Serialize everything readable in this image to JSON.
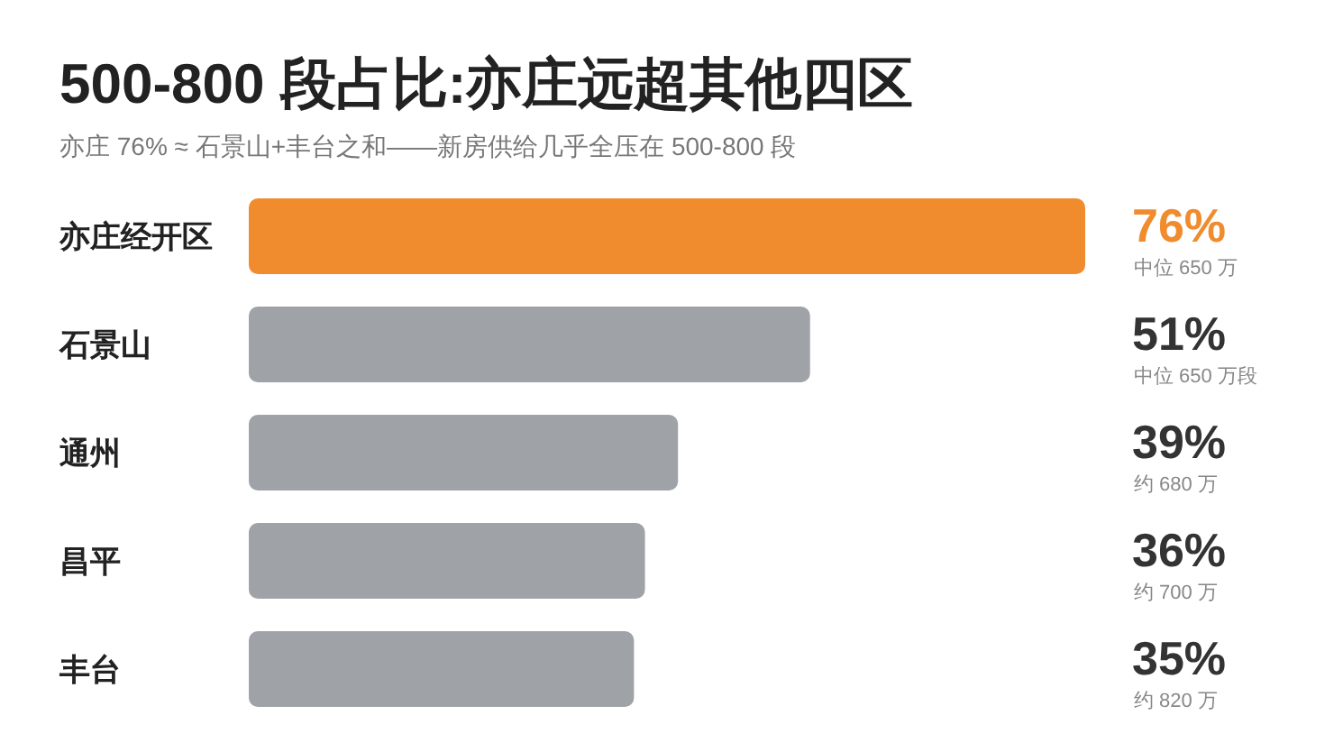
{
  "chart_data": {
    "type": "bar",
    "orientation": "horizontal",
    "title": "500-800 段占比:亦庄远超其他四区",
    "subtitle": "亦庄 76% ≈ 石景山+丰台之和——新房供给几乎全压在 500-800 段",
    "categories": [
      "亦庄经开区",
      "石景山",
      "通州",
      "昌平",
      "丰台"
    ],
    "values": [
      76,
      51,
      39,
      36,
      35
    ],
    "colors": [
      "#f08c2e",
      "#9fa3a8",
      "#9fa3a8",
      "#9fa3a8",
      "#9fa3a8"
    ],
    "value_labels": [
      "76%",
      "51%",
      "39%",
      "36%",
      "35%"
    ],
    "annotations": [
      "中位 650 万",
      "中位 650 万段",
      "约 680 万",
      "约 700 万",
      "约 820 万"
    ]
  }
}
